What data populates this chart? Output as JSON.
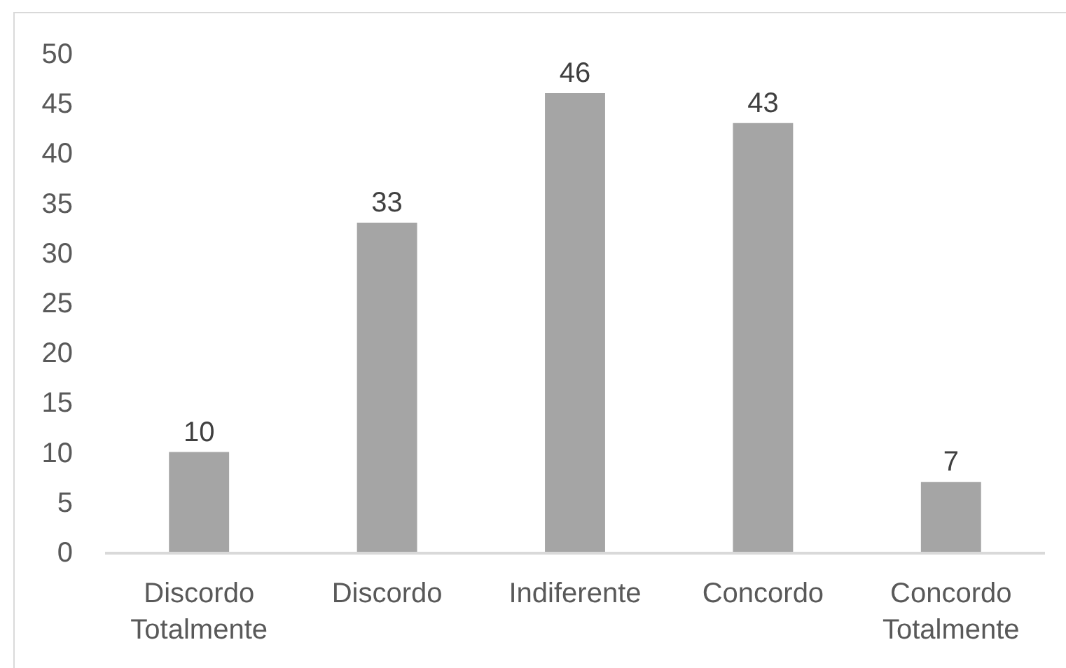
{
  "chart_data": {
    "type": "bar",
    "categories": [
      "Discordo Totalmente",
      "Discordo",
      "Indiferente",
      "Concordo",
      "Concordo Totalmente"
    ],
    "values": [
      10,
      33,
      46,
      43,
      7
    ],
    "color": "#a5a5a5",
    "ylim": [
      0,
      50
    ],
    "yticks": [
      0,
      5,
      10,
      15,
      20,
      25,
      30,
      35,
      40,
      45,
      50
    ],
    "data_labels": true,
    "grid": false
  }
}
